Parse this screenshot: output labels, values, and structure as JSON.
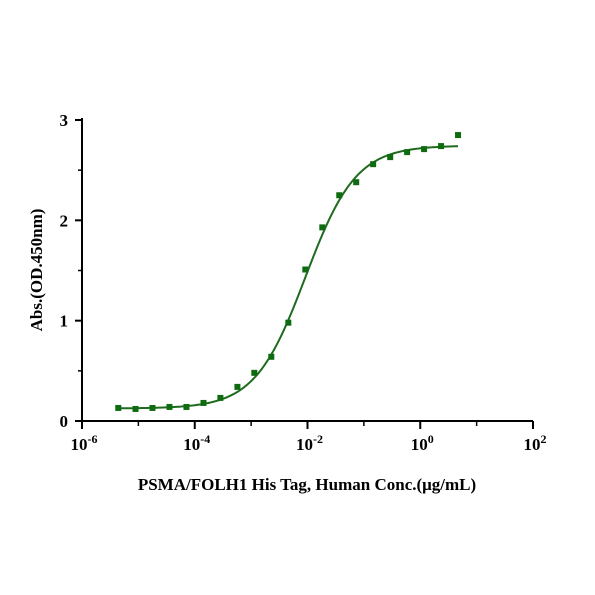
{
  "chart_data": {
    "type": "scatter",
    "xscale": "log",
    "xlim": [
      1e-06,
      100
    ],
    "ylim": [
      0,
      3
    ],
    "xlabel": "PSMA/FOLH1 His Tag, Human Conc.(μg/mL)",
    "ylabel": "Abs.(OD.450nm)",
    "xticks": [
      {
        "base": "10",
        "exp": "-6"
      },
      {
        "base": "10",
        "exp": "-4"
      },
      {
        "base": "10",
        "exp": "-2"
      },
      {
        "base": "10",
        "exp": "0"
      },
      {
        "base": "10",
        "exp": "2"
      }
    ],
    "yticks": [
      "0",
      "1",
      "2",
      "3"
    ],
    "points": {
      "x": [
        4.4e-06,
        8.9e-06,
        1.78e-05,
        3.56e-05,
        7.13e-05,
        0.000143,
        0.000285,
        0.000571,
        0.00114,
        0.00228,
        0.00457,
        0.00914,
        0.0183,
        0.0366,
        0.0731,
        0.146,
        0.293,
        0.585,
        1.17,
        2.34,
        4.68
      ],
      "y": [
        0.13,
        0.12,
        0.13,
        0.14,
        0.14,
        0.18,
        0.23,
        0.34,
        0.48,
        0.64,
        0.98,
        1.51,
        1.93,
        2.25,
        2.38,
        2.56,
        2.63,
        2.68,
        2.71,
        2.74,
        2.85
      ]
    },
    "fit": {
      "model": "4PL",
      "bottom": 0.125,
      "top": 2.745,
      "ec50": 0.0092,
      "hill": 0.97
    },
    "marker_color": "#0f6b0f",
    "line_color": "#1e6b1e"
  }
}
